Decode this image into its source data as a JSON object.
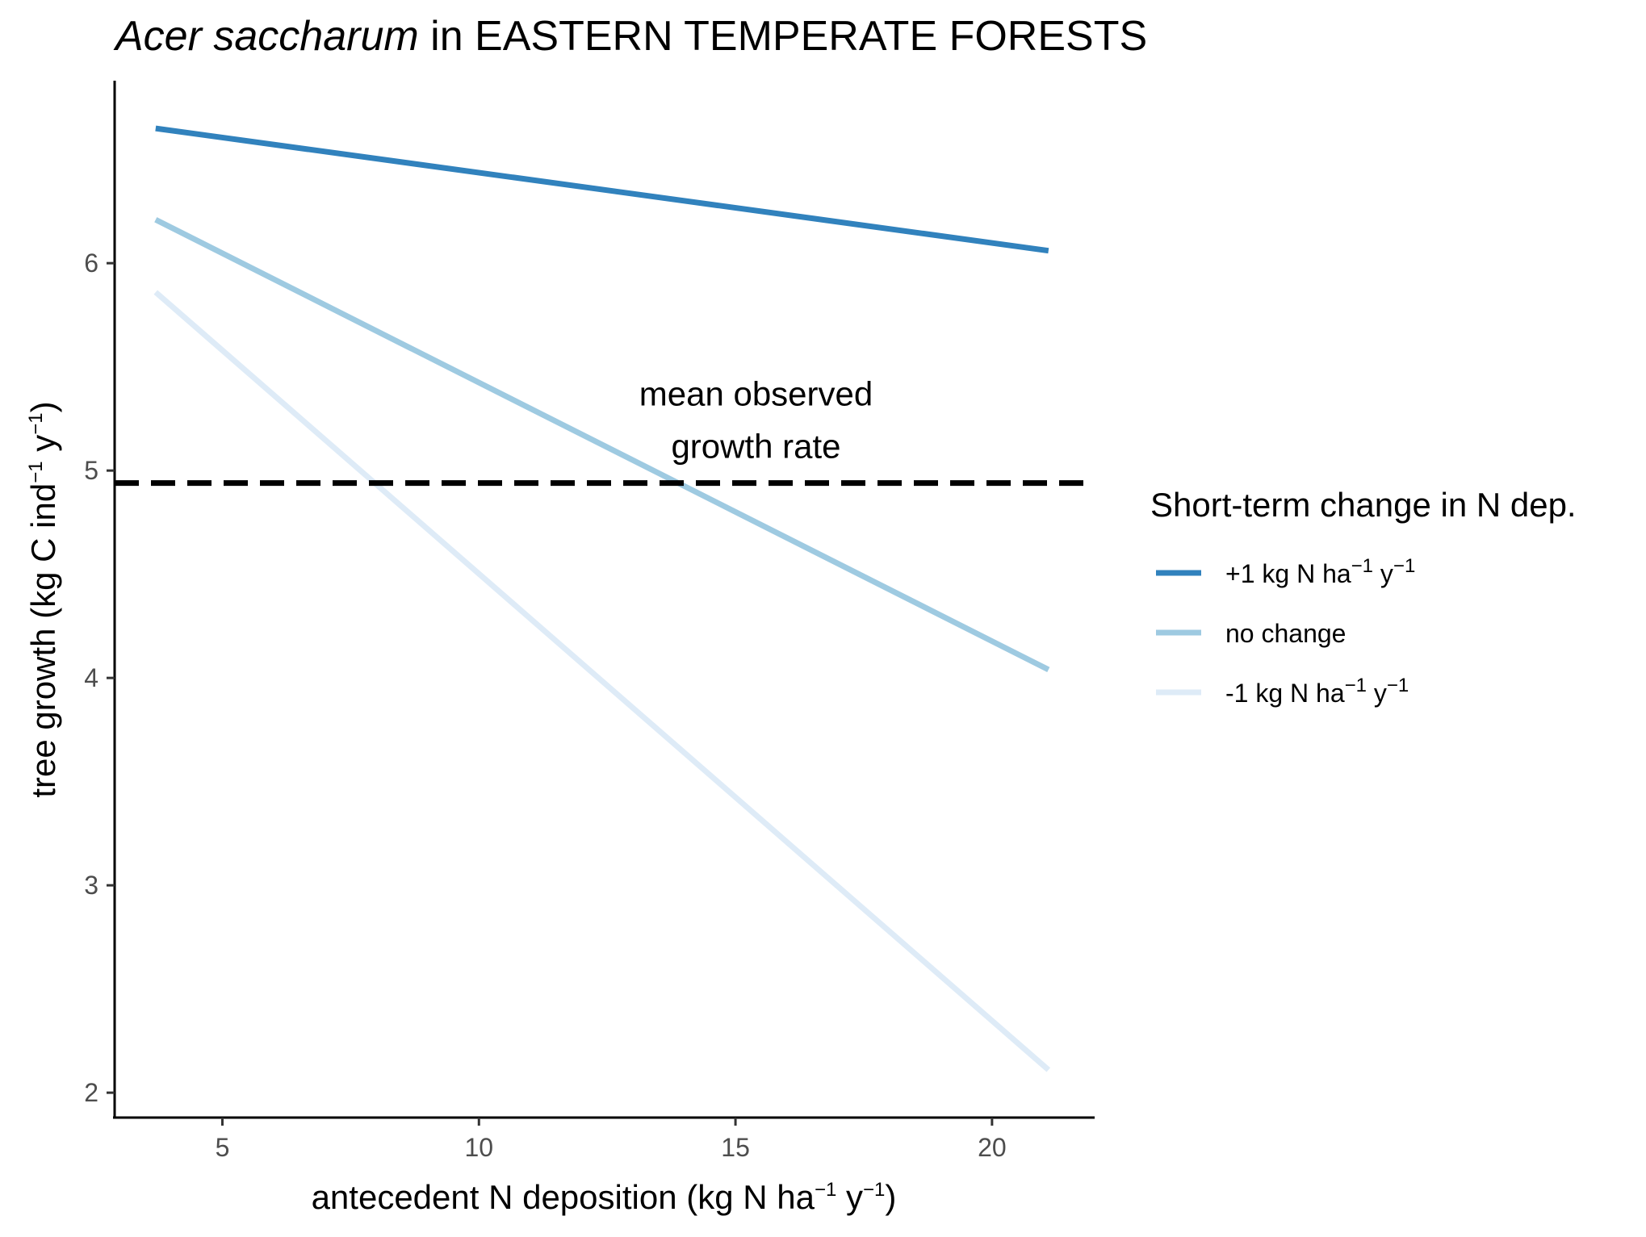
{
  "chart_data": {
    "type": "line",
    "title_italic": "Acer saccharum",
    "title_rest": " in EASTERN TEMPERATE FORESTS",
    "xlabel": {
      "pre": "antecedent N deposition (kg N ha",
      "sup1": "−1",
      "mid": " y",
      "sup2": "−1",
      "post": ")"
    },
    "ylabel": {
      "pre": "tree growth (kg C ind",
      "sup1": "−1",
      "mid": " y",
      "sup2": "−1",
      "post": ")"
    },
    "xlim": [
      2.9,
      22.0
    ],
    "ylim": [
      1.88,
      6.88
    ],
    "x_ticks": [
      5,
      10,
      15,
      20
    ],
    "y_ticks": [
      2,
      3,
      4,
      5,
      6
    ],
    "grid": false,
    "legend_position": "right",
    "legend": {
      "title": "Short-term change in N dep.",
      "entries": [
        {
          "pre": "+1 kg N ha",
          "sup1": "−1",
          "mid": " y",
          "sup2": "−1",
          "color": "#3182bd"
        },
        {
          "pre": "no change",
          "sup1": "",
          "mid": "",
          "sup2": "",
          "color": "#9ecae1"
        },
        {
          "pre": "-1 kg N ha",
          "sup1": "−1",
          "mid": " y",
          "sup2": "−1",
          "color": "#deebf7"
        }
      ]
    },
    "series": [
      {
        "color": "#3182bd",
        "x": [
          3.7,
          21.1
        ],
        "y": [
          6.65,
          6.06
        ]
      },
      {
        "color": "#9ecae1",
        "x": [
          3.7,
          21.1
        ],
        "y": [
          6.21,
          4.04
        ]
      },
      {
        "color": "#deebf7",
        "x": [
          3.7,
          21.1
        ],
        "y": [
          5.86,
          2.11
        ]
      }
    ],
    "reference_line": {
      "y": 4.94,
      "style": "dashed",
      "color": "#000000"
    },
    "annotation": {
      "lines": [
        "mean observed",
        "growth rate"
      ],
      "x": 15.4,
      "y": 4.94
    }
  }
}
